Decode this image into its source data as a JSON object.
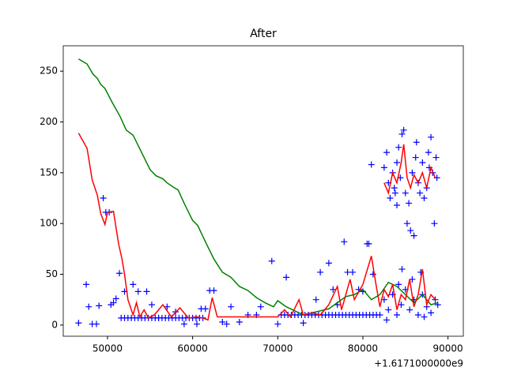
{
  "chart_data": {
    "type": "line",
    "title": "After",
    "x_offset_label": "+1.6171000000e9",
    "xlim": [
      44800,
      91800
    ],
    "ylim": [
      -11,
      275
    ],
    "xticks": [
      50000,
      60000,
      70000,
      80000,
      90000
    ],
    "yticks": [
      0,
      50,
      100,
      150,
      200,
      250
    ],
    "series": [
      {
        "type": "scatter",
        "color": "#0000ff",
        "x": [
          46600,
          47500,
          47800,
          48200,
          48700,
          49000,
          49500,
          49800,
          50200,
          50400,
          50700,
          51000,
          51400,
          52000,
          53000,
          53600,
          54600,
          55200,
          56000,
          57000,
          58000,
          59000,
          60500,
          61000,
          61500,
          62000,
          62500,
          63500,
          64000,
          64500,
          65500,
          66500,
          67500,
          68000,
          69300,
          70000,
          71000,
          73000,
          74500,
          75000,
          76000,
          76500,
          77000,
          77800,
          78200,
          78800,
          79500,
          80000,
          80500,
          80700,
          81200,
          81000,
          51600,
          52000,
          52400,
          52800,
          53200,
          53600,
          54000,
          54400,
          54800,
          55200,
          55600,
          56000,
          56400,
          56800,
          57200,
          57600,
          58000,
          58400,
          58800,
          59200,
          59600,
          60000,
          60400,
          60800,
          61200,
          70400,
          70800,
          71200,
          71600,
          72000,
          72400,
          72800,
          73200,
          73600,
          74000,
          74400,
          74800,
          75200,
          75600,
          76000,
          76400,
          76800,
          77200,
          77600,
          78000,
          78400,
          78800,
          79200,
          79600,
          80000,
          80400,
          80800,
          81200,
          81600,
          82000,
          82500,
          83000,
          83500,
          84000,
          84500,
          85000,
          85500,
          86000,
          86500,
          87000,
          87500,
          88000,
          88500,
          82800,
          84200,
          85800,
          87200,
          88800,
          86800,
          84600,
          82500,
          82800,
          83000,
          83200,
          83500,
          83700,
          84000,
          84200,
          84400,
          84600,
          84800,
          85000,
          85200,
          85400,
          85600,
          85800,
          86000,
          86200,
          86500,
          86700,
          87000,
          87200,
          87500,
          87700,
          88000,
          88200,
          88400,
          88600,
          88700,
          84000,
          83800,
          86300,
          87800
        ],
        "values": [
          2,
          40,
          18,
          1,
          1,
          19,
          125,
          111,
          111,
          20,
          22,
          26,
          51,
          33,
          40,
          33,
          33,
          20,
          7,
          18,
          13,
          1,
          1,
          16,
          16,
          34,
          34,
          3,
          1,
          18,
          3,
          10,
          10,
          18,
          63,
          1,
          47,
          2,
          25,
          52,
          61,
          35,
          20,
          82,
          52,
          52,
          35,
          33,
          80,
          80,
          50,
          158,
          7,
          7,
          7,
          7,
          7,
          7,
          7,
          7,
          7,
          7,
          7,
          7,
          7,
          7,
          7,
          7,
          7,
          7,
          7,
          7,
          7,
          7,
          7,
          7,
          7,
          10,
          10,
          10,
          10,
          10,
          10,
          10,
          10,
          10,
          10,
          10,
          10,
          10,
          10,
          10,
          10,
          10,
          10,
          10,
          10,
          10,
          10,
          10,
          10,
          10,
          10,
          10,
          10,
          10,
          10,
          25,
          15,
          30,
          10,
          20,
          35,
          15,
          25,
          10,
          30,
          18,
          12,
          25,
          5,
          40,
          45,
          8,
          20,
          52,
          55,
          155,
          170,
          140,
          125,
          150,
          135,
          160,
          175,
          145,
          188,
          192,
          130,
          100,
          120,
          93,
          150,
          88,
          165,
          140,
          130,
          160,
          125,
          135,
          170,
          185,
          150,
          100,
          165,
          145,
          118,
          130,
          180,
          155
        ]
      },
      {
        "type": "line",
        "color": "#008000",
        "x": [
          46600,
          47600,
          48300,
          48800,
          49200,
          49700,
          50500,
          51500,
          52200,
          53000,
          54000,
          55000,
          55700,
          56500,
          57000,
          57700,
          58300,
          59000,
          60000,
          60600,
          61500,
          62500,
          63500,
          64500,
          65500,
          66500,
          67500,
          68500,
          69500,
          70000,
          71000,
          72000,
          73000,
          74000,
          75000,
          76000,
          77000,
          78000,
          79000,
          80000,
          81000,
          82000,
          83000,
          84000,
          85000,
          86000,
          87000,
          88000,
          88800
        ],
        "values": [
          262,
          257,
          247,
          243,
          237,
          233,
          220,
          205,
          192,
          187,
          170,
          153,
          147,
          144,
          140,
          136,
          133,
          120,
          103,
          98,
          82,
          65,
          52,
          47,
          38,
          34,
          27,
          22,
          18,
          24,
          18,
          14,
          10,
          12,
          14,
          16,
          22,
          28,
          30,
          35,
          25,
          30,
          42,
          38,
          30,
          22,
          30,
          20,
          22
        ]
      },
      {
        "type": "line",
        "color": "#ff0000",
        "x": [
          46600,
          47600,
          48200,
          48800,
          49200,
          49700,
          50000,
          50700,
          51300,
          51700,
          52000,
          52400,
          53000,
          53400,
          53800,
          54300,
          54800,
          55500,
          56500,
          57500,
          58500,
          59500,
          60500,
          61200,
          61800,
          62300,
          62900,
          63500,
          64500,
          66000,
          68000,
          70000,
          70800,
          71500,
          72500,
          73000,
          74000,
          75000,
          76000,
          77000,
          77500,
          78500,
          79000,
          80000,
          81000,
          81500,
          82000,
          82500,
          83000,
          83500,
          84000,
          84500,
          85000,
          85500,
          86000,
          86500,
          87000,
          87500,
          88000,
          88500
        ],
        "values": [
          189,
          174,
          143,
          128,
          110,
          99,
          111,
          112,
          80,
          65,
          50,
          25,
          10,
          22,
          8,
          15,
          7,
          10,
          20,
          8,
          17,
          7,
          8,
          7,
          5,
          27,
          8,
          8,
          8,
          8,
          8,
          8,
          15,
          8,
          25,
          10,
          12,
          10,
          20,
          38,
          15,
          45,
          25,
          40,
          68,
          42,
          18,
          35,
          28,
          40,
          15,
          30,
          25,
          45,
          18,
          30,
          55,
          20,
          30,
          25
        ]
      },
      {
        "type": "line",
        "color": "#ff0000",
        "x": [
          82500,
          83000,
          83500,
          84000,
          84500,
          84800,
          85200,
          85600,
          86000,
          86500,
          87000,
          87500,
          88000,
          88500
        ],
        "values": [
          140,
          130,
          150,
          140,
          160,
          178,
          145,
          135,
          148,
          140,
          150,
          135,
          155,
          145
        ]
      }
    ]
  }
}
